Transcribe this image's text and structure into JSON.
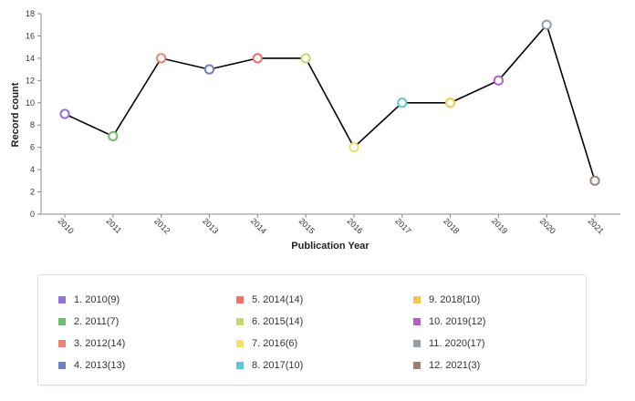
{
  "chart_data": {
    "type": "line",
    "xlabel": "Publication Year",
    "ylabel": "Record count",
    "ylim": [
      0,
      18
    ],
    "yticks": [
      0,
      2,
      4,
      6,
      8,
      10,
      12,
      14,
      16,
      18
    ],
    "categories": [
      "2010",
      "2011",
      "2012",
      "2013",
      "2014",
      "2015",
      "2016",
      "2017",
      "2018",
      "2019",
      "2020",
      "2021"
    ],
    "values": [
      9,
      7,
      14,
      13,
      14,
      14,
      6,
      10,
      10,
      12,
      17,
      3
    ],
    "line_color": "#000000",
    "marker_colors": [
      "#9370DB",
      "#6CBF6C",
      "#F08070",
      "#7080C8",
      "#F07070",
      "#C8D870",
      "#F0E070",
      "#5CC8D8",
      "#F0C850",
      "#B060C8",
      "#90A0A8",
      "#A08070"
    ],
    "legend": {
      "placement": "bottom",
      "entries": [
        {
          "label": "1. 2010(9)",
          "color": "#9370DB"
        },
        {
          "label": "2. 2011(7)",
          "color": "#6CBF6C"
        },
        {
          "label": "3. 2012(14)",
          "color": "#F08070"
        },
        {
          "label": "4. 2013(13)",
          "color": "#7080C8"
        },
        {
          "label": "5. 2014(14)",
          "color": "#F07070"
        },
        {
          "label": "6. 2015(14)",
          "color": "#C8D870"
        },
        {
          "label": "7. 2016(6)",
          "color": "#F0E070"
        },
        {
          "label": "8. 2017(10)",
          "color": "#5CC8D8"
        },
        {
          "label": "9. 2018(10)",
          "color": "#F0C850"
        },
        {
          "label": "10. 2019(12)",
          "color": "#B060C8"
        },
        {
          "label": "11. 2020(17)",
          "color": "#90A0A8"
        },
        {
          "label": "12. 2021(3)",
          "color": "#A08070"
        }
      ]
    }
  }
}
